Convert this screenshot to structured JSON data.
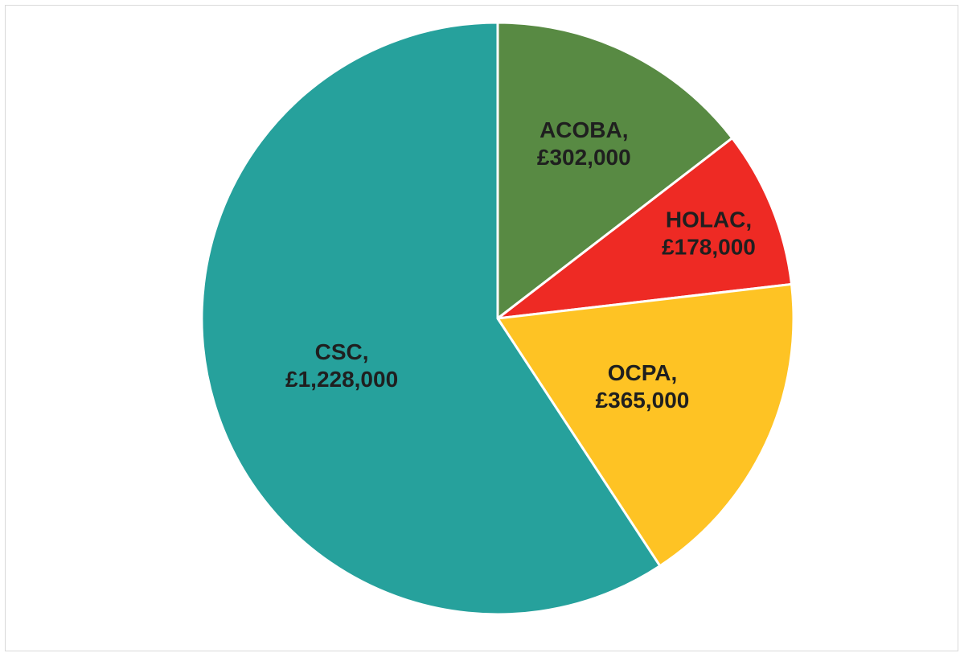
{
  "chart_data": {
    "type": "pie",
    "title": "",
    "start_angle_deg": 0,
    "direction": "clockwise",
    "slices": [
      {
        "category": "ACOBA",
        "value": 302000,
        "value_label": "£302,000",
        "color": "#588a43"
      },
      {
        "category": "HOLAC",
        "value": 178000,
        "value_label": "£178,000",
        "color": "#ee2a24"
      },
      {
        "category": "OCPA",
        "value": 365000,
        "value_label": "£365,000",
        "color": "#fec324"
      },
      {
        "category": "CSC",
        "value": 1228000,
        "value_label": "£1,228,000",
        "color": "#26a19c"
      }
    ]
  }
}
